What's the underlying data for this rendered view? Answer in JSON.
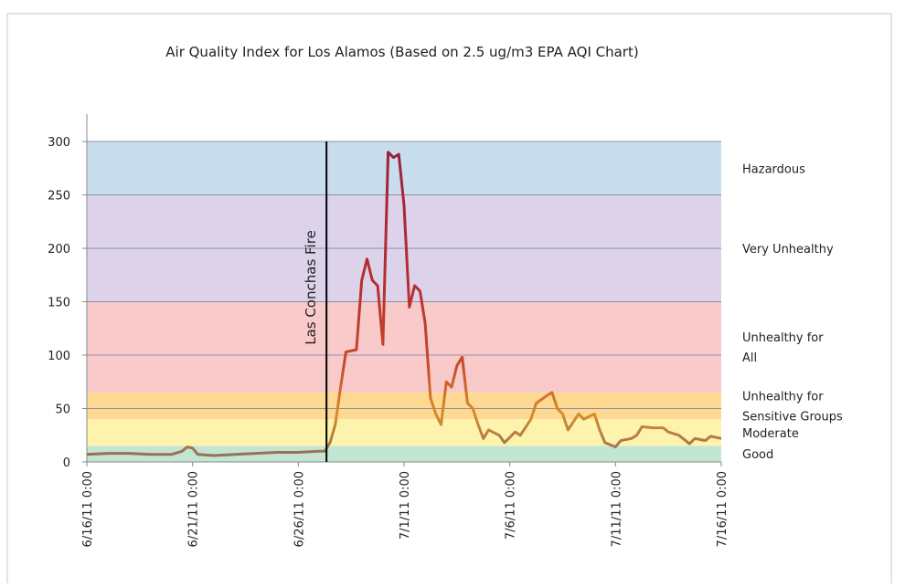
{
  "chart_data": {
    "type": "line",
    "title": "Air Quality Index for Los Alamos (Based on 2.5 ug/m3 EPA AQI Chart)",
    "x": [
      "6/16/11 0:00",
      "6/17/11 0:00",
      "6/18/11 0:00",
      "6/19/11 0:00",
      "6/20/11 0:00",
      "6/20/11 12:00",
      "6/20/11 18:00",
      "6/21/11 0:00",
      "6/21/11 6:00",
      "6/22/11 0:00",
      "6/23/11 0:00",
      "6/24/11 0:00",
      "6/25/11 0:00",
      "6/26/11 0:00",
      "6/27/11 0:00",
      "6/27/11 6:00",
      "6/27/11 12:00",
      "6/27/11 18:00",
      "6/28/11 0:00",
      "6/28/11 6:00",
      "6/28/11 18:00",
      "6/29/11 0:00",
      "6/29/11 6:00",
      "6/29/11 12:00",
      "6/29/11 18:00",
      "6/30/11 0:00",
      "6/30/11 6:00",
      "6/30/11 12:00",
      "6/30/11 18:00",
      "7/1/11 0:00",
      "7/1/11 6:00",
      "7/1/11 12:00",
      "7/1/11 18:00",
      "7/2/11 0:00",
      "7/2/11 6:00",
      "7/2/11 12:00",
      "7/2/11 18:00",
      "7/3/11 0:00",
      "7/3/11 6:00",
      "7/3/11 12:00",
      "7/3/11 18:00",
      "7/4/11 0:00",
      "7/4/11 6:00",
      "7/4/11 12:00",
      "7/4/11 18:00",
      "7/5/11 0:00",
      "7/5/11 12:00",
      "7/5/11 18:00",
      "7/6/11 6:00",
      "7/6/11 12:00",
      "7/7/11 0:00",
      "7/7/11 6:00",
      "7/7/11 18:00",
      "7/8/11 0:00",
      "7/8/11 6:00",
      "7/8/11 12:00",
      "7/8/11 18:00",
      "7/9/11 6:00",
      "7/9/11 12:00",
      "7/10/11 0:00",
      "7/10/11 6:00",
      "7/10/11 12:00",
      "7/11/11 0:00",
      "7/11/11 6:00",
      "7/11/11 18:00",
      "7/12/11 0:00",
      "7/12/11 6:00",
      "7/12/11 18:00",
      "7/13/11 6:00",
      "7/13/11 12:00",
      "7/14/11 0:00",
      "7/14/11 12:00",
      "7/14/11 18:00",
      "7/15/11 6:00",
      "7/15/11 12:00",
      "7/16/11 0:00"
    ],
    "values": [
      7,
      8,
      8,
      7,
      7,
      10,
      14,
      13,
      7,
      6,
      7,
      8,
      9,
      9,
      10,
      10,
      18,
      35,
      70,
      103,
      105,
      170,
      190,
      170,
      165,
      110,
      290,
      285,
      288,
      240,
      145,
      165,
      160,
      130,
      60,
      45,
      35,
      75,
      70,
      90,
      98,
      55,
      50,
      35,
      22,
      30,
      25,
      18,
      28,
      25,
      40,
      55,
      62,
      65,
      50,
      45,
      30,
      45,
      40,
      45,
      30,
      18,
      14,
      20,
      22,
      25,
      33,
      32,
      32,
      28,
      25,
      17,
      22,
      20,
      24,
      22
    ],
    "color_stops": [
      {
        "value": 0,
        "color": "#8a6a5e"
      },
      {
        "value": 20,
        "color": "#b07a48"
      },
      {
        "value": 45,
        "color": "#d98c2a"
      },
      {
        "value": 90,
        "color": "#c94a2c"
      },
      {
        "value": 160,
        "color": "#b8302e"
      },
      {
        "value": 290,
        "color": "#9c2038"
      }
    ],
    "xlim": [
      "6/16/11 0:00",
      "7/16/11 0:00"
    ],
    "xticks": [
      "6/16/11 0:00",
      "6/21/11 0:00",
      "6/26/11 0:00",
      "7/1/11 0:00",
      "7/6/11 0:00",
      "7/11/11 0:00",
      "7/16/11 0:00"
    ],
    "ylim": [
      0,
      300
    ],
    "yticks": [
      0,
      50,
      100,
      150,
      200,
      250,
      300
    ],
    "grid": true,
    "bands": [
      {
        "lines": [
          "Good"
        ],
        "from": 0,
        "to": 15,
        "color": "#c3e6d3",
        "label_color": "#2e9c78"
      },
      {
        "lines": [
          "Moderate"
        ],
        "from": 15,
        "to": 40,
        "color": "#fdf3ad",
        "label_color": "#d4b000"
      },
      {
        "lines": [
          "Unhealthy for",
          "Sensitive Groups"
        ],
        "from": 40,
        "to": 65,
        "color": "#fdd991",
        "label_color": "#e6ad10"
      },
      {
        "lines": [
          "Unhealthy for",
          "All"
        ],
        "from": 65,
        "to": 150,
        "color": "#f9caca",
        "label_color": "#c0282a"
      },
      {
        "lines": [
          "Very Unhealthy"
        ],
        "from": 150,
        "to": 250,
        "color": "#dcd3eb",
        "label_color": "#7a4e9a"
      },
      {
        "lines": [
          "Hazardous"
        ],
        "from": 250,
        "to": 300,
        "color": "#c8ddee",
        "label_color": "#3a7fa0"
      }
    ],
    "annotation": {
      "text": "Las Conchas Fire",
      "x": "6/27/11 8:00"
    }
  }
}
